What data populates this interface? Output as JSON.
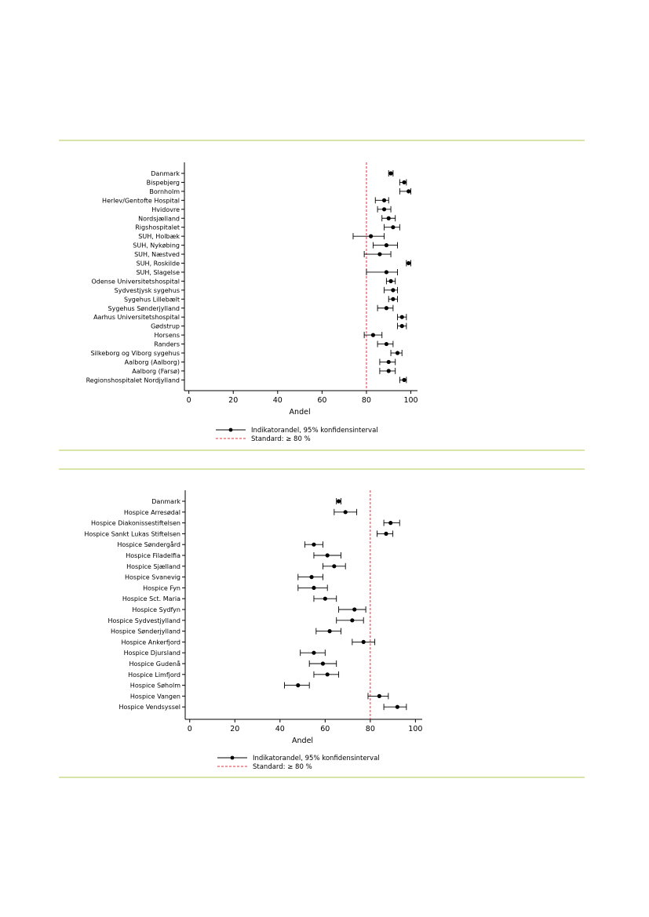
{
  "colors": {
    "rule": "#d7e5a8",
    "standard_line": "#e8313c",
    "marker": "#000000"
  },
  "chart_data": [
    {
      "type": "scatter",
      "style": "forest plot with horizontal error bars",
      "xlabel": "Andel",
      "xlim": [
        -2,
        103
      ],
      "xticks": [
        0,
        20,
        40,
        60,
        80,
        100
      ],
      "standard": 80,
      "grid": false,
      "legend": {
        "placement": "bottom",
        "entries": [
          "Indikatorandel, 95% konfidensinterval",
          "Standard: ≥ 80 %"
        ]
      },
      "categories": [
        "Danmark",
        "Bispebjerg",
        "Bornholm",
        "Herlev/Gentofte Hospital",
        "Hvidovre",
        "Nordsjælland",
        "Rigshospitalet",
        "SUH, Holbæk",
        "SUH, Nykøbing",
        "SUH, Næstved",
        "SUH, Roskilde",
        "SUH, Slagelse",
        "Odense Universitetshospital",
        "Sydvestjysk sygehus",
        "Sygehus Lillebælt",
        "Sygehus Sønderjylland",
        "Aarhus Universitetshospital",
        "Gødstrup",
        "Horsens",
        "Randers",
        "Silkeborg og Viborg sygehus",
        "Aalborg (Aalborg)",
        "Aalborg (Farsø)",
        "Regionshospitalet Nordjylland"
      ],
      "values": [
        91,
        97,
        99,
        88,
        88,
        90,
        92,
        82,
        89,
        86,
        99,
        89,
        91,
        92,
        92,
        89,
        96,
        96,
        83,
        89,
        94,
        90,
        90,
        97
      ],
      "ci_low": [
        90,
        95,
        95,
        84,
        85,
        87,
        88,
        74,
        83,
        79,
        98,
        80,
        89,
        88,
        90,
        85,
        94,
        94,
        79,
        85,
        91,
        86,
        86,
        95
      ],
      "ci_high": [
        92,
        98,
        100,
        90,
        91,
        93,
        95,
        88,
        94,
        91,
        100,
        94,
        93,
        94,
        94,
        92,
        98,
        98,
        87,
        92,
        96,
        93,
        93,
        98
      ]
    },
    {
      "type": "scatter",
      "style": "forest plot with horizontal error bars",
      "xlabel": "Andel",
      "xlim": [
        -2,
        103
      ],
      "xticks": [
        0,
        20,
        40,
        60,
        80,
        100
      ],
      "standard": 80,
      "grid": false,
      "legend": {
        "placement": "bottom",
        "entries": [
          "Indikatorandel, 95% konfidensinterval",
          "Standard: ≥ 80 %"
        ]
      },
      "categories": [
        "Danmark",
        "Hospice Arresødal",
        "Hospice Diakonissestiftelsen",
        "Hospice Sankt Lukas Stiftelsen",
        "Hospice Søndergård",
        "Hospice Filadelfia",
        "Hospice Sjælland",
        "Hospice Svanevig",
        "Hospice Fyn",
        "Hospice Sct. Maria",
        "Hospice Sydfyn",
        "Hospice Sydvestjylland",
        "Hospice Sønderjylland",
        "Hospice Ankerfjord",
        "Hospice Djursland",
        "Hospice Gudenå",
        "Hospice Limfjord",
        "Hospice Søholm",
        "Hospice Vangen",
        "Hospice Vendsyssel"
      ],
      "values": [
        66,
        69,
        89,
        87,
        55,
        61,
        64,
        54,
        55,
        60,
        73,
        72,
        62,
        77,
        55,
        59,
        61,
        48,
        84,
        92
      ],
      "ci_low": [
        65,
        64,
        86,
        83,
        51,
        55,
        59,
        48,
        48,
        55,
        66,
        65,
        56,
        72,
        49,
        53,
        55,
        42,
        79,
        86
      ],
      "ci_high": [
        67,
        74,
        93,
        90,
        59,
        67,
        69,
        59,
        61,
        65,
        78,
        77,
        67,
        82,
        60,
        65,
        66,
        53,
        88,
        96
      ]
    }
  ]
}
